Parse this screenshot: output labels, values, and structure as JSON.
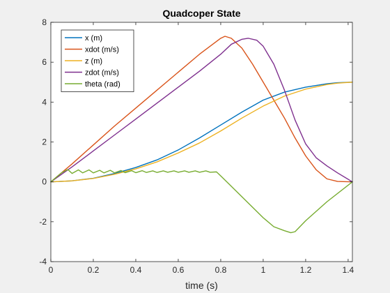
{
  "chart_data": {
    "type": "line",
    "title": "Quadcoper State",
    "xlabel": "time (s)",
    "ylabel": "",
    "xlim": [
      0,
      1.42
    ],
    "ylim": [
      -4,
      8
    ],
    "xticks": [
      0,
      0.2,
      0.4,
      0.6,
      0.8,
      1,
      1.2,
      1.4
    ],
    "xtick_labels": [
      "0",
      "0.2",
      "0.4",
      "0.6",
      "0.8",
      "1",
      "1.2",
      "1.4"
    ],
    "yticks": [
      -4,
      -2,
      0,
      2,
      4,
      6,
      8
    ],
    "ytick_labels": [
      "-4",
      "-2",
      "0",
      "2",
      "4",
      "6",
      "8"
    ],
    "grid": false,
    "legend_position": "top-left",
    "series": [
      {
        "name": "x (m)",
        "color": "#0072BD",
        "x": [
          0,
          0.1,
          0.2,
          0.3,
          0.4,
          0.5,
          0.6,
          0.7,
          0.8,
          0.9,
          1.0,
          1.1,
          1.2,
          1.3,
          1.35,
          1.42
        ],
        "y": [
          0,
          0.05,
          0.18,
          0.42,
          0.72,
          1.1,
          1.6,
          2.2,
          2.85,
          3.5,
          4.1,
          4.5,
          4.75,
          4.92,
          4.97,
          5.0
        ]
      },
      {
        "name": "xdot (m/s)",
        "color": "#D95319",
        "x": [
          0,
          0.1,
          0.2,
          0.3,
          0.4,
          0.5,
          0.6,
          0.7,
          0.8,
          0.82,
          0.85,
          0.9,
          0.95,
          1.0,
          1.05,
          1.1,
          1.15,
          1.2,
          1.25,
          1.3,
          1.35,
          1.42
        ],
        "y": [
          0,
          0.9,
          1.85,
          2.8,
          3.7,
          4.6,
          5.5,
          6.4,
          7.2,
          7.3,
          7.2,
          6.7,
          5.9,
          5.0,
          4.1,
          3.2,
          2.2,
          1.3,
          0.6,
          0.15,
          0.02,
          0
        ]
      },
      {
        "name": "z (m)",
        "color": "#EDB120",
        "x": [
          0,
          0.1,
          0.2,
          0.3,
          0.4,
          0.5,
          0.6,
          0.7,
          0.8,
          0.9,
          1.0,
          1.1,
          1.2,
          1.3,
          1.35,
          1.42
        ],
        "y": [
          0,
          0.05,
          0.17,
          0.38,
          0.65,
          1.0,
          1.45,
          1.95,
          2.55,
          3.2,
          3.8,
          4.3,
          4.65,
          4.88,
          4.95,
          5.0
        ]
      },
      {
        "name": "zdot (m/s)",
        "color": "#7E2F8E",
        "x": [
          0,
          0.1,
          0.2,
          0.3,
          0.4,
          0.5,
          0.6,
          0.7,
          0.8,
          0.85,
          0.9,
          0.93,
          0.97,
          1.0,
          1.05,
          1.1,
          1.15,
          1.2,
          1.25,
          1.3,
          1.35,
          1.42
        ],
        "y": [
          0,
          0.75,
          1.55,
          2.35,
          3.15,
          3.95,
          4.75,
          5.55,
          6.4,
          6.9,
          7.15,
          7.2,
          7.1,
          6.8,
          5.9,
          4.6,
          3.1,
          1.9,
          1.2,
          0.8,
          0.45,
          0
        ]
      },
      {
        "name": "theta (rad)",
        "color": "#77AC30",
        "x": [
          0,
          0.05,
          0.08,
          0.1,
          0.13,
          0.15,
          0.18,
          0.2,
          0.23,
          0.25,
          0.28,
          0.3,
          0.33,
          0.35,
          0.38,
          0.4,
          0.43,
          0.45,
          0.48,
          0.5,
          0.53,
          0.55,
          0.58,
          0.6,
          0.63,
          0.65,
          0.68,
          0.7,
          0.73,
          0.75,
          0.78,
          0.8,
          0.9,
          1.0,
          1.05,
          1.1,
          1.13,
          1.15,
          1.2,
          1.3,
          1.42
        ],
        "y": [
          0,
          0.45,
          0.62,
          0.42,
          0.6,
          0.45,
          0.6,
          0.45,
          0.58,
          0.45,
          0.58,
          0.45,
          0.57,
          0.46,
          0.56,
          0.46,
          0.56,
          0.47,
          0.55,
          0.47,
          0.55,
          0.48,
          0.55,
          0.48,
          0.55,
          0.48,
          0.55,
          0.48,
          0.55,
          0.48,
          0.5,
          0.3,
          -0.75,
          -1.8,
          -2.25,
          -2.45,
          -2.55,
          -2.5,
          -1.95,
          -1.0,
          0
        ]
      }
    ]
  }
}
